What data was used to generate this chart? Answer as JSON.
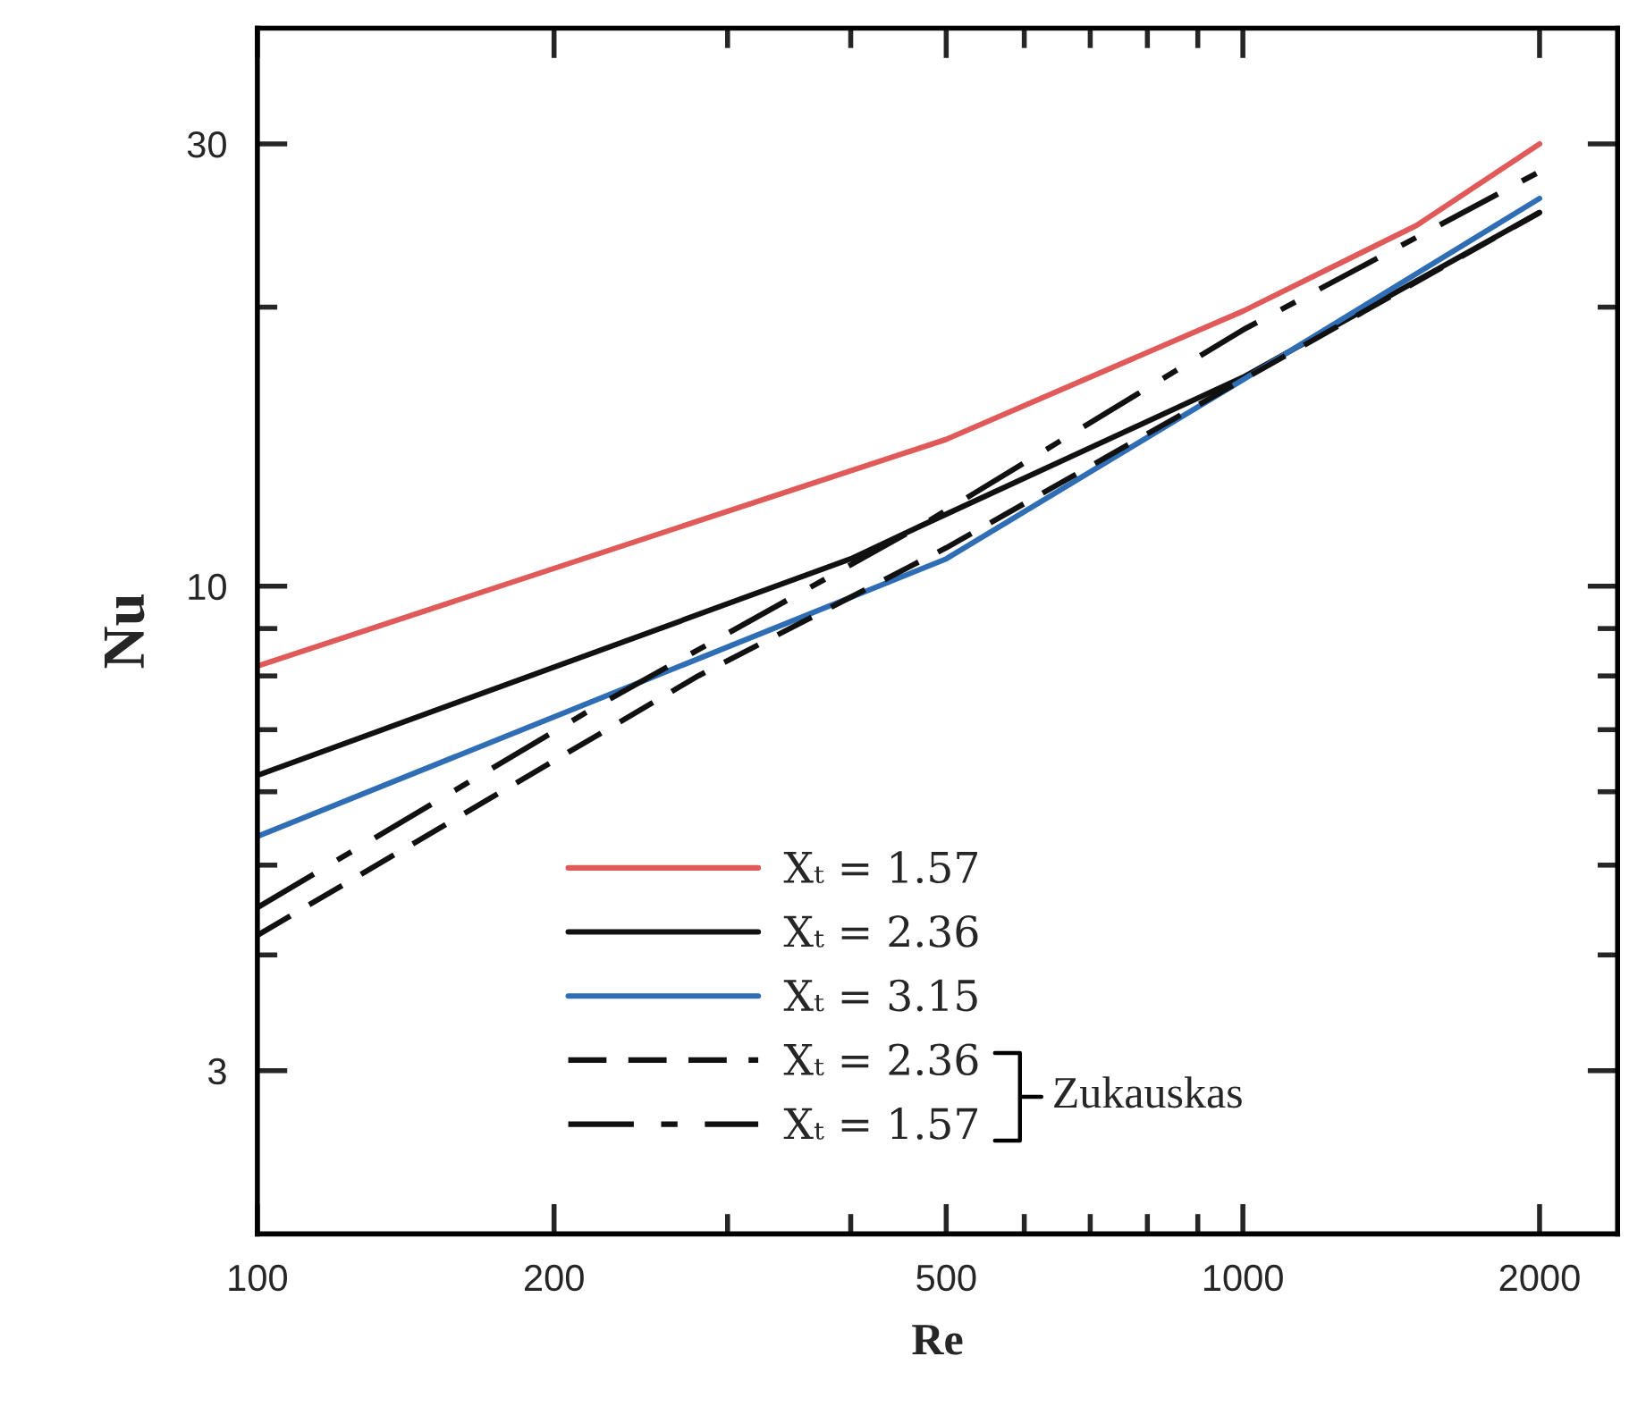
{
  "chart_data": {
    "type": "line",
    "xlabel": "Re",
    "ylabel": "Nu",
    "log": "xy",
    "xlim": [
      100,
      2400
    ],
    "ylim": [
      2,
      40
    ],
    "xticks": [
      100,
      200,
      {
        "value": 300,
        "label": null
      },
      {
        "value": 400,
        "label": null
      },
      500,
      {
        "value": 600,
        "label": null
      },
      {
        "value": 700,
        "label": null
      },
      {
        "value": 800,
        "label": null
      },
      {
        "value": 900,
        "label": null
      },
      1000,
      2000
    ],
    "yticks": [
      3,
      {
        "value": 4,
        "label": null
      },
      {
        "value": 5,
        "label": null
      },
      {
        "value": 6,
        "label": null
      },
      {
        "value": 7,
        "label": null
      },
      {
        "value": 8,
        "label": null
      },
      {
        "value": 9,
        "label": null
      },
      10,
      {
        "value": 20,
        "label": null
      },
      30
    ],
    "series": [
      {
        "name": "Xₜ = 1.57",
        "color": "#e05a5a",
        "line_style": "solid",
        "x": [
          100,
          500,
          1000,
          1500,
          2000
        ],
        "values": [
          8.2,
          14.4,
          19.8,
          24.5,
          30
        ]
      },
      {
        "name": "Xₜ = 2.36",
        "color": "#111111",
        "line_style": "solid",
        "x": [
          100,
          400,
          470,
          1000,
          2000
        ],
        "values": [
          6.25,
          10.7,
          11.6,
          16.8,
          25.3
        ]
      },
      {
        "name": "Xₜ = 3.15",
        "color": "#2f6db5",
        "line_style": "solid",
        "x": [
          100,
          500,
          1000,
          2000
        ],
        "values": [
          5.37,
          10.7,
          16.7,
          26.2
        ]
      },
      {
        "name": "Xₜ = 2.36",
        "color": "#111111",
        "line_style": "dashed",
        "x": [
          100,
          280,
          500,
          1000,
          2000
        ],
        "values": [
          4.2,
          8.0,
          11.0,
          16.7,
          25.3
        ]
      },
      {
        "name": "Xₜ = 1.57",
        "color": "#111111",
        "line_style": "dashdot",
        "x": [
          100,
          220,
          470,
          1000,
          2000
        ],
        "values": [
          4.5,
          7.4,
          11.6,
          18.9,
          28.0
        ]
      }
    ],
    "legend": "bottom",
    "grid": false,
    "marker": "none",
    "annotations": [
      "Zukauskas"
    ]
  }
}
